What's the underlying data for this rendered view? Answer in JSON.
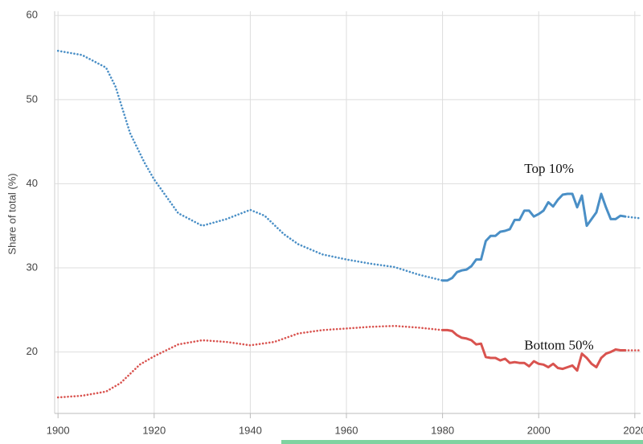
{
  "chart_data": {
    "type": "line",
    "ylabel": "Share of total (%)",
    "xlim": [
      1899.3,
      2021.2
    ],
    "xticks": [
      1900,
      1920,
      1940,
      1960,
      1980,
      2000,
      2020
    ],
    "ylim": [
      12.7,
      60.5
    ],
    "yticks": [
      20,
      30,
      40,
      50,
      60
    ],
    "grid": true,
    "series": [
      {
        "color": "#4a8fc6",
        "line_style": "dotted",
        "x": [
          1900,
          1905,
          1910,
          1912,
          1915,
          1918,
          1920,
          1925,
          1930,
          1935,
          1940,
          1943,
          1947,
          1950,
          1955,
          1960,
          1965,
          1970,
          1975,
          1980,
          1999,
          2018,
          2021
        ],
        "values": [
          55.8,
          55.3,
          53.8,
          51.5,
          46,
          42.5,
          40.5,
          36.5,
          35,
          35.8,
          36.9,
          36.2,
          34,
          32.8,
          31.6,
          31,
          30.5,
          30.1,
          29.2,
          28.5,
          null,
          36.1,
          35.9
        ]
      },
      {
        "name": "Top 10%",
        "color": "#4a8fc6",
        "line_style": "solid",
        "x": [
          1980,
          1981,
          1982,
          1983,
          1984,
          1985,
          1986,
          1987,
          1988,
          1989,
          1990,
          1991,
          1992,
          1993,
          1994,
          1995,
          1996,
          1997,
          1998,
          1999,
          2000,
          2001,
          2002,
          2003,
          2004,
          2005,
          2006,
          2007,
          2008,
          2009,
          2010,
          2011,
          2012,
          2013,
          2014,
          2015,
          2016,
          2017,
          2018
        ],
        "values": [
          28.5,
          28.5,
          28.8,
          29.5,
          29.7,
          29.8,
          30.2,
          31,
          31,
          33.2,
          33.8,
          33.8,
          34.3,
          34.4,
          34.6,
          35.7,
          35.7,
          36.8,
          36.8,
          36.1,
          36.4,
          36.8,
          37.8,
          37.3,
          38.1,
          38.7,
          38.8,
          38.8,
          37.2,
          38.6,
          35,
          35.8,
          36.6,
          38.8,
          37.2,
          35.8,
          35.8,
          36.2,
          36.1
        ]
      },
      {
        "color": "#d9534f",
        "line_style": "dotted",
        "x": [
          1900,
          1905,
          1910,
          1913,
          1917,
          1920,
          1925,
          1930,
          1935,
          1940,
          1945,
          1950,
          1955,
          1960,
          1965,
          1970,
          1975,
          1980,
          1999,
          2018,
          2021
        ],
        "values": [
          14.6,
          14.8,
          15.3,
          16.3,
          18.5,
          19.5,
          20.9,
          21.4,
          21.2,
          20.8,
          21.2,
          22.2,
          22.6,
          22.8,
          23,
          23.1,
          22.9,
          22.6,
          null,
          20.2,
          20.2
        ]
      },
      {
        "name": "Bottom 50%",
        "color": "#d9534f",
        "line_style": "solid",
        "x": [
          1980,
          1981,
          1982,
          1983,
          1984,
          1985,
          1986,
          1987,
          1988,
          1989,
          1990,
          1991,
          1992,
          1993,
          1994,
          1995,
          1996,
          1997,
          1998,
          1999,
          2000,
          2001,
          2002,
          2003,
          2004,
          2005,
          2006,
          2007,
          2008,
          2009,
          2010,
          2011,
          2012,
          2013,
          2014,
          2015,
          2016,
          2017,
          2018
        ],
        "values": [
          22.6,
          22.6,
          22.5,
          22,
          21.7,
          21.6,
          21.4,
          20.9,
          21,
          19.4,
          19.3,
          19.3,
          19,
          19.2,
          18.7,
          18.8,
          18.7,
          18.7,
          18.3,
          18.9,
          18.6,
          18.5,
          18.2,
          18.6,
          18.1,
          18,
          18.2,
          18.4,
          17.8,
          19.8,
          19.3,
          18.6,
          18.2,
          19.3,
          19.8,
          20,
          20.3,
          20.2,
          20.2
        ]
      }
    ]
  }
}
